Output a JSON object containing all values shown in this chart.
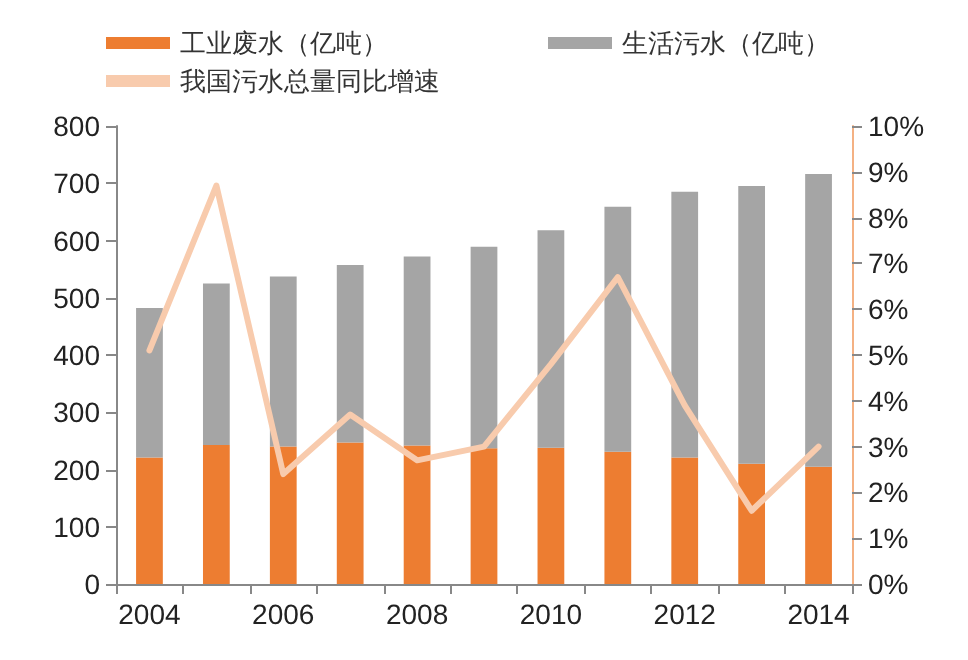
{
  "chart_data": {
    "type": "bar",
    "stacked": true,
    "categories": [
      "2004",
      null,
      "2006",
      null,
      "2008",
      null,
      "2010",
      null,
      "2012",
      null,
      "2014"
    ],
    "series": [
      {
        "name": "工业废水（亿吨）",
        "color": "#ed7d31",
        "values": [
          221,
          243,
          240,
          247,
          242,
          237,
          238,
          231,
          221,
          210,
          205
        ]
      },
      {
        "name": "生活污水（亿吨）",
        "color": "#a5a5a5",
        "values": [
          261,
          282,
          297,
          310,
          330,
          352,
          380,
          428,
          464,
          485,
          511
        ]
      },
      {
        "name": "我国污水总量同比增速",
        "type": "line",
        "axis": "y2",
        "color": "#f8cbad",
        "marker": "none",
        "values": [
          5.1,
          8.7,
          2.4,
          3.7,
          2.7,
          3.0,
          4.8,
          6.7,
          3.9,
          1.6,
          3.0
        ]
      }
    ],
    "ylim": [
      0,
      800
    ],
    "yticks": [
      0,
      100,
      200,
      300,
      400,
      500,
      600,
      700,
      800
    ],
    "y2lim": [
      0,
      10
    ],
    "y2ticks": [
      {
        "value": 0,
        "label": "0%"
      },
      {
        "value": 1,
        "label": "1%"
      },
      {
        "value": 2,
        "label": "2%"
      },
      {
        "value": 3,
        "label": "3%"
      },
      {
        "value": 4,
        "label": "4%"
      },
      {
        "value": 5,
        "label": "5%"
      },
      {
        "value": 6,
        "label": "6%"
      },
      {
        "value": 7,
        "label": "7%"
      },
      {
        "value": 8,
        "label": "8%"
      },
      {
        "value": 9,
        "label": "9%"
      },
      {
        "value": 10,
        "label": "10%"
      }
    ],
    "grid": false,
    "legend": "top"
  }
}
